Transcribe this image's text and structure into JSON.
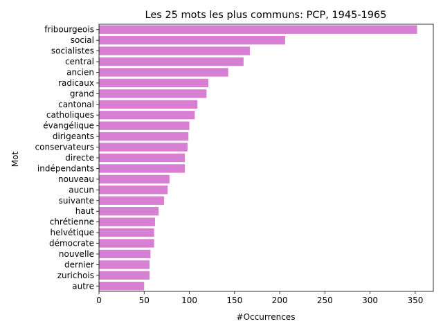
{
  "chart_data": {
    "type": "bar",
    "orientation": "horizontal",
    "title": "Les 25 mots les plus communs: PCP, 1945-1965",
    "xlabel": "#Occurrences",
    "ylabel": "Mot",
    "xlim": [
      0,
      370
    ],
    "xticks": [
      0,
      50,
      100,
      150,
      200,
      250,
      300,
      350
    ],
    "grid": false,
    "bar_color": "#d67fd3",
    "categories": [
      "fribourgeois",
      "social",
      "socialistes",
      "central",
      "ancien",
      "radicaux",
      "grand",
      "cantonal",
      "catholiques",
      "évangélique",
      "dirigeants",
      "conservateurs",
      "directe",
      "indépendants",
      "nouveau",
      "aucun",
      "suivante",
      "haut",
      "chrétienne",
      "helvétique",
      "démocrate",
      "nouvelle",
      "dernier",
      "zurichois",
      "autre"
    ],
    "values": [
      352,
      206,
      167,
      160,
      143,
      121,
      119,
      109,
      106,
      100,
      99,
      98,
      95,
      95,
      78,
      76,
      72,
      66,
      62,
      61,
      61,
      57,
      56,
      56,
      50
    ]
  }
}
